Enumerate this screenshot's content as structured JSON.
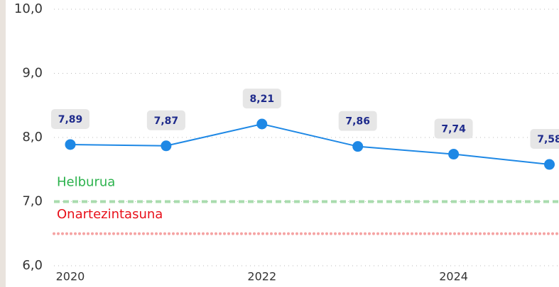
{
  "chart_data": {
    "type": "line",
    "x": [
      2020,
      2021,
      2022,
      2023,
      2024,
      2025
    ],
    "series": [
      {
        "color": "#1e88e5",
        "values": [
          7.89,
          7.87,
          8.21,
          7.86,
          7.74,
          7.58
        ],
        "value_labels": [
          "7,89",
          "7,87",
          "8,21",
          "7,86",
          "7,74",
          "7,58"
        ]
      }
    ],
    "xlim": [
      2019.8,
      2025.1
    ],
    "xticks": [
      2020,
      2022,
      2024
    ],
    "ylim": [
      6,
      10
    ],
    "yticks": [
      {
        "value": 6,
        "label": "6,0"
      },
      {
        "value": 7,
        "label": "7,0"
      },
      {
        "value": 8,
        "label": "8,0"
      },
      {
        "value": 9,
        "label": "9,0"
      },
      {
        "value": 10,
        "label": "10,0"
      }
    ],
    "grid": true,
    "reference_lines": [
      {
        "label": "Helburua",
        "value": 7,
        "color": "#a9dcae",
        "label_color": "#2bb24c",
        "style": "dashed"
      },
      {
        "label": "Onartezintasuna",
        "value": 6.5,
        "color": "#f5a3a3",
        "label_color": "#e8101a",
        "style": "dotted"
      }
    ]
  }
}
